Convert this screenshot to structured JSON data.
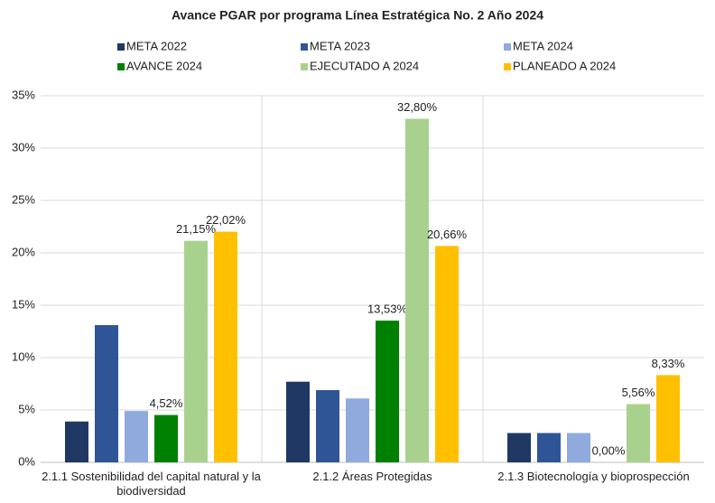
{
  "chart_data": {
    "type": "bar",
    "title": "Avance PGAR por programa Línea Estratégica No. 2 Año 2024",
    "categories": [
      "2.1.1 Sostenibilidad del capital natural y la biodiversidad",
      "2.1.2 Áreas Protegidas",
      "2.1.3 Biotecnología y bioprospección"
    ],
    "series": [
      {
        "name": "META  2022",
        "color": "#203864",
        "values": [
          3.9,
          7.7,
          2.8
        ]
      },
      {
        "name": "META 2023",
        "color": "#2f5597",
        "values": [
          13.1,
          6.9,
          2.8
        ]
      },
      {
        "name": "META 2024",
        "color": "#8faadc",
        "values": [
          4.9,
          6.1,
          2.8
        ]
      },
      {
        "name": "AVANCE 2024",
        "color": "#008000",
        "values": [
          4.52,
          13.53,
          0.0
        ],
        "value_labels": [
          "4,52%",
          "13,53%",
          "0,00%"
        ]
      },
      {
        "name": "EJECUTADO A 2024",
        "color": "#a9d18e",
        "values": [
          21.15,
          32.8,
          5.56
        ],
        "value_labels": [
          "21,15%",
          "32,80%",
          "5,56%"
        ]
      },
      {
        "name": "PLANEADO A 2024",
        "color": "#ffc000",
        "values": [
          22.02,
          20.66,
          8.33
        ],
        "value_labels": [
          "22,02%",
          "20,66%",
          "8,33%"
        ]
      }
    ],
    "ylim": [
      0,
      35
    ],
    "yticks": [
      {
        "value": 0,
        "label": "0%"
      },
      {
        "value": 5,
        "label": "5%"
      },
      {
        "value": 10,
        "label": "10%"
      },
      {
        "value": 15,
        "label": "15%"
      },
      {
        "value": 20,
        "label": "20%"
      },
      {
        "value": 25,
        "label": "25%"
      },
      {
        "value": 30,
        "label": "30%"
      },
      {
        "value": 35,
        "label": "35%"
      }
    ],
    "grid": true
  }
}
